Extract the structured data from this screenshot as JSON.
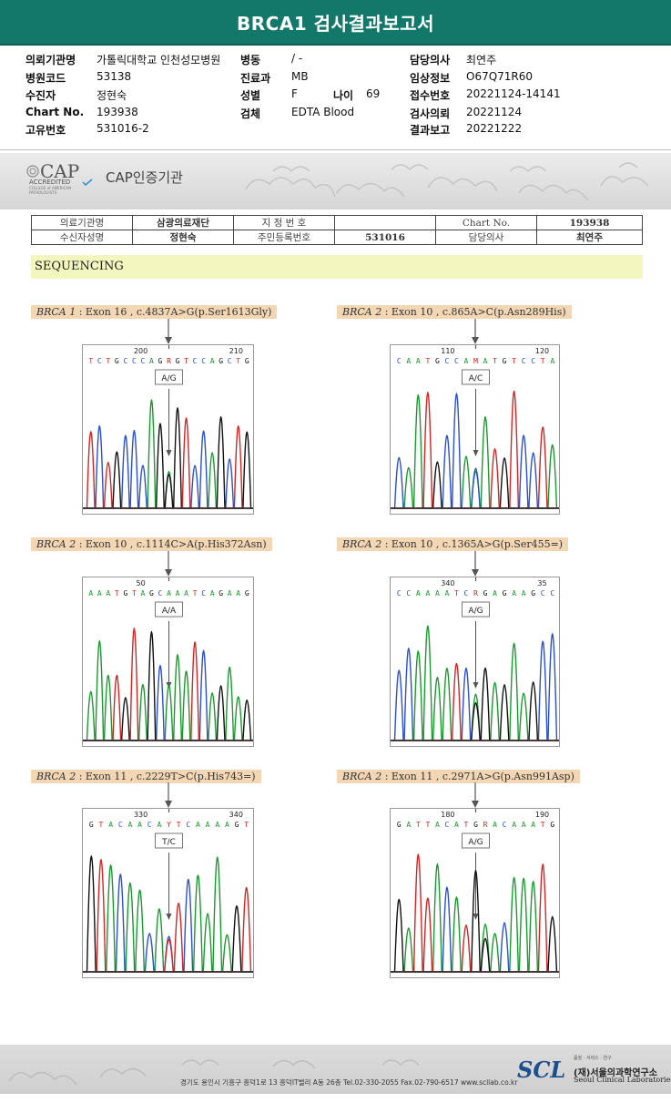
{
  "title": "BRCA1 검사결과보고서",
  "header_fields": [
    {
      "label": "의뢰기관명",
      "value": "가톨릭대학교 인천성모병원"
    },
    {
      "label": "병원코드",
      "value": "53138"
    },
    {
      "label": "수진자",
      "value": "정현숙"
    },
    {
      "label": "Chart No.",
      "value": "193938"
    },
    {
      "label": "고유번호",
      "value": "531016-2"
    },
    {
      "label": "병동",
      "value": "/ -"
    },
    {
      "label": "진료과",
      "value": "MB"
    },
    {
      "label": "성별",
      "value": "F"
    },
    {
      "label": "나이",
      "value": "69"
    },
    {
      "label": "검체",
      "value": "EDTA Blood"
    },
    {
      "label": "담당의사",
      "value": "최연주"
    },
    {
      "label": "임상정보",
      "value": "O67Q71R60"
    },
    {
      "label": "접수번호",
      "value": "20221124-14141"
    },
    {
      "label": "검사의뢰",
      "value": "20221124"
    },
    {
      "label": "결과보고",
      "value": "20221222"
    }
  ],
  "cap": {
    "logo_text": "CAP",
    "accredited": "ACCREDITED",
    "college": "COLLEGE of AMERICAN PATHOLOGISTS",
    "title": "CAP인증기관"
  },
  "info_table": {
    "row1": [
      "의료기관명",
      "삼광의료재단",
      "지 정 번 호",
      "",
      "Chart No.",
      "193938"
    ],
    "row2": [
      "수신자성명",
      "정현숙",
      "주민등록번호",
      "531016",
      "담당의사",
      "최연주"
    ]
  },
  "section_title": "SEQUENCING",
  "panels": [
    {
      "gene": "BRCA 1",
      "detail": ": Exon 16 , c.4837A>G(p.Ser1613Gly)",
      "seq": "TCTGCCCAGRGTCCAGCTG",
      "pos": [
        "200",
        "210"
      ],
      "call": "A/G"
    },
    {
      "gene": "BRCA 2",
      "detail": ": Exon 10 , c.865A>C(p.Asn289His)",
      "seq": "CAATGCCAMATGTCCTA",
      "pos": [
        "110",
        "120"
      ],
      "call": "A/C"
    },
    {
      "gene": "BRCA 2",
      "detail": ": Exon 10 , c.1114C>A(p.His372Asn)",
      "seq": "AAATGTAGCAAATCAGAAG",
      "pos": [
        "50"
      ],
      "call": "A/A"
    },
    {
      "gene": "BRCA 2",
      "detail": ": Exon 10 , c.1365A>G(p.Ser455=)",
      "seq": "CCAAAATCRGAGAAGCC",
      "pos": [
        "340",
        "35"
      ],
      "call": "A/G"
    },
    {
      "gene": "BRCA 2",
      "detail": ": Exon 11 , c.2229T>C(p.His743=)",
      "seq": "GTACAACAYTCAAAAGT",
      "pos": [
        "330",
        "340"
      ],
      "call": "T/C"
    },
    {
      "gene": "BRCA 2",
      "detail": ": Exon 11 , c.2971A>G(p.Asn991Asp)",
      "seq": "GATTACATGRACAAATG",
      "pos": [
        "180",
        "190"
      ],
      "call": "A/G"
    }
  ],
  "footer": {
    "address": "경기도 용인시 기흥구 흥덕1로 13 흥덕IT밸리 A동 26층  Tel.02-330-2055  Fax.02-790-6517  www.scllab.co.kr",
    "scl_logo": "SCL",
    "org_top": "품질 · 서비스 · 연구",
    "org_kr": "(재)서울의과학연구소",
    "org_en": "Seoul Clinical Laboratories"
  },
  "colors": {
    "title_bar": "#12786a",
    "label_bg": "#f3d7b4",
    "seq_bar": "#f3f6bd",
    "A": "#1a9a2e",
    "C": "#2a4fd0",
    "G": "#111111",
    "T": "#d42424"
  }
}
